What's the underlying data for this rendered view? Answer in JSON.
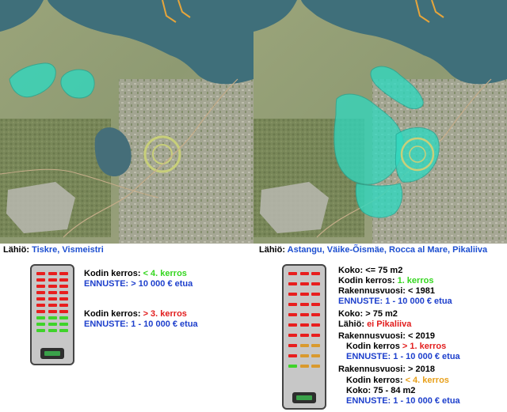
{
  "left_panel": {
    "caption_key": "Lähiö:",
    "caption_value": "Tiskre, Vismeistri",
    "tower_floors": [
      [
        "red",
        "red",
        "red"
      ],
      [
        "red",
        "red",
        "red"
      ],
      [
        "red",
        "red",
        "red"
      ],
      [
        "red",
        "red",
        "red"
      ],
      [
        "red",
        "red",
        "red"
      ],
      [
        "red",
        "red",
        "red"
      ],
      [
        "red",
        "red",
        "red"
      ],
      [
        "green",
        "green",
        "green"
      ],
      [
        "green",
        "green",
        "green"
      ],
      [
        "green",
        "green",
        "green"
      ]
    ],
    "rules": [
      {
        "key": "Kodin kerros:",
        "value": "< 4. kerros",
        "color": "green"
      },
      {
        "key": "ENNUSTE: > 10 000 € etua",
        "color": "blue"
      },
      {
        "key": "Kodin kerros:",
        "value": "> 3. kerros",
        "color": "red"
      },
      {
        "key": "ENNUSTE: 1 - 10 000 € etua",
        "color": "blue"
      }
    ]
  },
  "right_panel": {
    "caption_key": "Lähiö:",
    "caption_value": "Astangu, Väike-Õismäe, Rocca al Mare, Pikaliiva",
    "tower_floors": [
      [
        "red",
        "red",
        "red"
      ],
      [
        "red",
        "red",
        "red"
      ],
      [
        "red",
        "red",
        "red"
      ],
      [
        "red",
        "red",
        "red"
      ],
      [
        "red",
        "red",
        "red"
      ],
      [
        "red",
        "red",
        "red"
      ],
      [
        "red",
        "red",
        "red"
      ],
      [
        "red",
        "orange",
        "orange"
      ],
      [
        "red",
        "orange",
        "orange"
      ],
      [
        "green",
        "orange",
        "orange"
      ]
    ],
    "rules": [
      {
        "key": "Koko: <= 75 m2"
      },
      {
        "key": "Kodin kerros:",
        "value": "1. kerros",
        "color": "green"
      },
      {
        "key": "Rakennusvuosi: < 1981"
      },
      {
        "key": "ENNUSTE: 1 - 10 000 € etua",
        "color": "blue"
      },
      {
        "key": "Koko: > 75 m2"
      },
      {
        "key": "Lähiö:",
        "value": "ei Pikaliiva",
        "color": "red"
      },
      {
        "key": "Rakennusvuosi: < 2019"
      },
      {
        "key": "Kodin kerros",
        "value": "> 1. kerros",
        "color": "red"
      },
      {
        "key": "ENNUSTE: 1 - 10 000 € etua",
        "color": "blue"
      },
      {
        "key": "Rakennusvuosi: > 2018"
      },
      {
        "key": "Kodin kerros:",
        "value": "< 4. kerros",
        "color": "orange"
      },
      {
        "key": "Koko: 75 - 84 m2"
      },
      {
        "key": "ENNUSTE: 1 - 10 000 € etua",
        "color": "blue"
      }
    ]
  },
  "colors": {
    "red": "#e81e1e",
    "green": "#3fd32a",
    "orange": "#d99a2e",
    "highlight": "#2fd9c0",
    "sea": "#3f6f7a",
    "land": "#8c9a6a"
  }
}
